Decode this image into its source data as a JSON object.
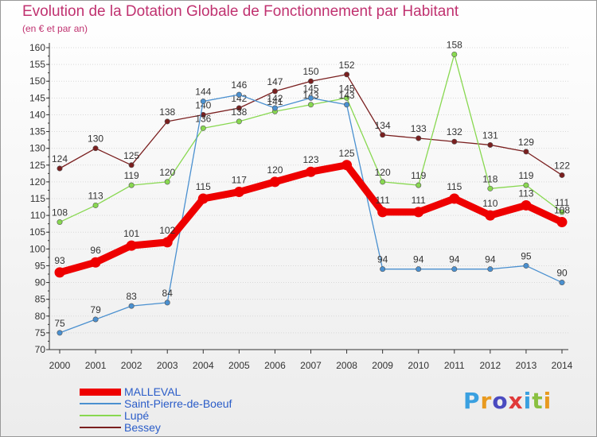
{
  "title": "Evolution de la Dotation Globale de Fonctionnement par Habitant",
  "subtitle": "(en € et par an)",
  "logo": "Proxiti",
  "colors": {
    "title": "#c03270",
    "legend_text": "#2a5cc8",
    "axis": "#333333",
    "grid": "#d8d8d8"
  },
  "chart_data": {
    "type": "line",
    "title": "Evolution de la Dotation Globale de Fonctionnement par Habitant",
    "subtitle": "(en € et par an)",
    "x": [
      2000,
      2001,
      2002,
      2003,
      2004,
      2005,
      2006,
      2007,
      2008,
      2009,
      2010,
      2011,
      2012,
      2013,
      2014
    ],
    "ylim": [
      70,
      160
    ],
    "yticks": [
      70,
      75,
      80,
      85,
      90,
      95,
      100,
      105,
      110,
      115,
      120,
      125,
      130,
      135,
      140,
      145,
      150,
      155,
      160
    ],
    "grid": "horizontal",
    "legend": "bottom-left",
    "series": [
      {
        "name": "Bessey",
        "color": "#7a1f1f",
        "values": [
          124,
          130,
          125,
          138,
          140,
          142,
          147,
          150,
          152,
          134,
          133,
          132,
          131,
          129,
          122
        ]
      },
      {
        "name": "Lupé",
        "color": "#88d850",
        "values": [
          108,
          113,
          119,
          120,
          136,
          138,
          141,
          143,
          145,
          120,
          119,
          158,
          118,
          119,
          111
        ]
      },
      {
        "name": "Saint-Pierre-de-Boeuf",
        "color": "#4a90d0",
        "values": [
          75,
          79,
          83,
          84,
          144,
          146,
          142,
          145,
          143,
          94,
          94,
          94,
          94,
          95,
          90
        ]
      },
      {
        "name": "MALLEVAL",
        "color": "#ee0000",
        "values": [
          93,
          96,
          101,
          102,
          115,
          117,
          120,
          123,
          125,
          111,
          111,
          115,
          110,
          113,
          108
        ]
      }
    ]
  }
}
